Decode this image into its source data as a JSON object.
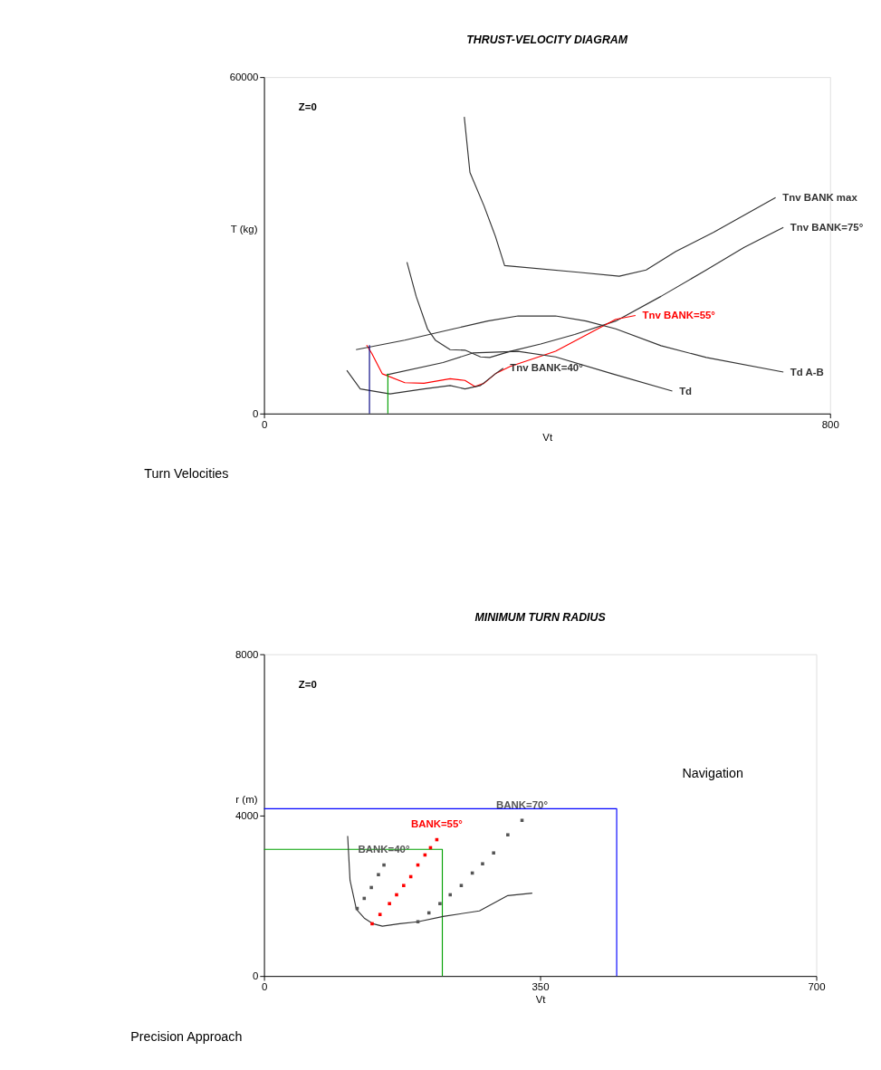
{
  "chart_data": [
    {
      "type": "line",
      "title": "THRUST-VELOCITY DIAGRAM",
      "xlabel": "Vt",
      "ylabel": "T  (kg)",
      "xlim": [
        0,
        800
      ],
      "xticks": [
        0,
        800
      ],
      "ylim": [
        0,
        60000
      ],
      "yticks": [
        0,
        60000
      ],
      "grid": false,
      "line_style": "solid",
      "annotations": [
        "Z=0",
        "Turn Velocities"
      ],
      "series": [
        {
          "name": "Tnv BANK max",
          "color": "#333333",
          "x": [
            283,
            291,
            311,
            327,
            340,
            444,
            502,
            540,
            582,
            635,
            723
          ],
          "values": [
            52900,
            43000,
            37000,
            31600,
            26400,
            25200,
            24500,
            25600,
            28900,
            32300,
            38500
          ]
        },
        {
          "name": "Tnv BANK=75°",
          "color": "#333333",
          "x": [
            202,
            215,
            231,
            242,
            263,
            284,
            306,
            319,
            348,
            391,
            439,
            497,
            561,
            625,
            678,
            734
          ],
          "values": [
            27000,
            20900,
            15100,
            13100,
            11400,
            11300,
            10100,
            10000,
            11100,
            12400,
            14100,
            16500,
            20900,
            25600,
            29600,
            33200
          ]
        },
        {
          "name": "Tnv BANK=55°",
          "color": "#ff0000",
          "x": [
            145,
            152,
            167,
            199,
            226,
            263,
            284,
            298,
            311,
            327,
            348,
            412,
            497,
            525
          ],
          "values": [
            12200,
            10800,
            7100,
            5500,
            5400,
            6200,
            5900,
            4800,
            5400,
            7100,
            8400,
            11100,
            16800,
            17500
          ]
        },
        {
          "name": "Tnv BANK=40°",
          "color": "#333333",
          "x": [
            117,
            136,
            178,
            226,
            263,
            284,
            306,
            327,
            338
          ],
          "values": [
            7700,
            4400,
            3500,
            4400,
            5000,
            4400,
            5000,
            7100,
            8100
          ]
        },
        {
          "name": "Td",
          "color": "#333333",
          "x": [
            173,
            253,
            295,
            359,
            412,
            492,
            577
          ],
          "values": [
            6900,
            9100,
            10800,
            11100,
            10100,
            7100,
            4000
          ]
        },
        {
          "name": "Td A-B",
          "color": "#333333",
          "x": [
            130,
            199,
            268,
            316,
            359,
            412,
            455,
            497,
            561,
            625,
            734
          ],
          "values": [
            11400,
            13100,
            15100,
            16500,
            17400,
            17400,
            16500,
            15100,
            12100,
            10000,
            7400
          ]
        },
        {
          "color": "#000080",
          "x": [
            149,
            149
          ],
          "values": [
            12200,
            0
          ]
        },
        {
          "color": "#00a000",
          "x": [
            175,
            175
          ],
          "values": [
            7100,
            0
          ]
        }
      ]
    },
    {
      "type": "line",
      "title": "MINIMUM TURN RADIUS",
      "xlabel": "Vt",
      "ylabel": "r  (m)",
      "xlim": [
        0,
        700
      ],
      "xticks": [
        0,
        350,
        700
      ],
      "ylim": [
        0,
        8000
      ],
      "yticks": [
        0,
        4000,
        8000
      ],
      "grid": false,
      "line_style": "solid",
      "annotations": [
        "Z=0",
        "Navigation",
        "Precision Approach"
      ],
      "series": [
        {
          "type": "line",
          "color": "#0000ff",
          "x": [
            0,
            447,
            447
          ],
          "values": [
            4160,
            4160,
            0
          ]
        },
        {
          "type": "line",
          "color": "#00a000",
          "x": [
            0,
            226,
            226
          ],
          "values": [
            3150,
            3150,
            0
          ]
        },
        {
          "type": "line",
          "color": "#333333",
          "x": [
            106,
            109,
            117,
            127,
            138,
            150,
            172,
            195,
            227,
            273,
            309,
            340
          ],
          "values": [
            3480,
            2380,
            1660,
            1440,
            1300,
            1240,
            1300,
            1350,
            1480,
            1620,
            2000,
            2060
          ]
        },
        {
          "type": "scatter",
          "name": "BANK=40°",
          "color": "#555555",
          "x": [
            118,
            127,
            136,
            145,
            152
          ],
          "values": [
            1680,
            1930,
            2200,
            2520,
            2760
          ]
        },
        {
          "type": "scatter",
          "name": "BANK=55°",
          "color": "#ff0000",
          "x": [
            137,
            147,
            159,
            168,
            177,
            186,
            195,
            204,
            211,
            219
          ],
          "values": [
            1300,
            1530,
            1800,
            2020,
            2250,
            2470,
            2760,
            3010,
            3190,
            3390
          ]
        },
        {
          "type": "scatter",
          "name": "BANK=70°",
          "color": "#555555",
          "x": [
            195,
            209,
            223,
            236,
            250,
            264,
            277,
            291,
            309,
            327
          ],
          "values": [
            1350,
            1570,
            1800,
            2020,
            2250,
            2560,
            2790,
            3060,
            3510,
            3870
          ]
        }
      ]
    }
  ]
}
